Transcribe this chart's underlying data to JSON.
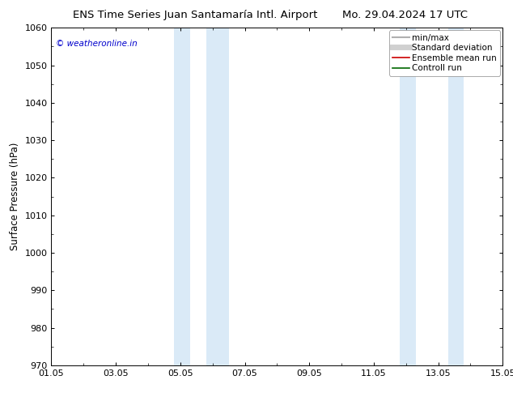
{
  "title_left": "ENS Time Series Juan Santamaría Intl. Airport",
  "title_right": "Mo. 29.04.2024 17 UTC",
  "ylabel": "Surface Pressure (hPa)",
  "watermark": "© weatheronline.in",
  "ylim": [
    970,
    1060
  ],
  "yticks": [
    970,
    980,
    990,
    1000,
    1010,
    1020,
    1030,
    1040,
    1050,
    1060
  ],
  "xlim_start": 0,
  "xlim_end": 14,
  "xtick_positions": [
    0,
    2,
    4,
    6,
    8,
    10,
    12,
    14
  ],
  "xtick_labels": [
    "01.05",
    "03.05",
    "05.05",
    "07.05",
    "09.05",
    "11.05",
    "13.05",
    "15.05"
  ],
  "shaded_bands": [
    {
      "x_start": 3.8,
      "x_end": 4.3
    },
    {
      "x_start": 4.8,
      "x_end": 5.5
    },
    {
      "x_start": 10.8,
      "x_end": 11.3
    },
    {
      "x_start": 12.3,
      "x_end": 12.8
    }
  ],
  "shade_color": "#daeaf7",
  "background_color": "#ffffff",
  "legend_items": [
    {
      "label": "min/max",
      "color": "#b0b0b0",
      "lw": 1.5
    },
    {
      "label": "Standard deviation",
      "color": "#d0d0d0",
      "lw": 5
    },
    {
      "label": "Ensemble mean run",
      "color": "#cc0000",
      "lw": 1.2
    },
    {
      "label": "Controll run",
      "color": "#006600",
      "lw": 1.2
    }
  ],
  "watermark_color": "#0000cc",
  "title_fontsize": 9.5,
  "ylabel_fontsize": 8.5,
  "tick_fontsize": 8,
  "legend_fontsize": 7.5
}
